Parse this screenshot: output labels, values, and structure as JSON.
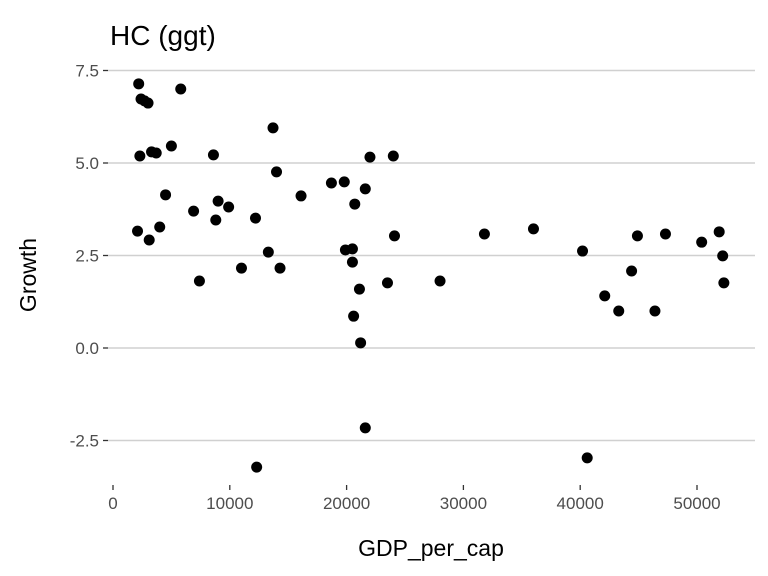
{
  "chart_data": {
    "type": "scatter",
    "title": "HC (ggt)",
    "xlabel": "GDP_per_cap",
    "ylabel": "Growth",
    "xlim": [
      0,
      55000
    ],
    "ylim": [
      -3.5,
      7.8
    ],
    "xticks": [
      0,
      10000,
      20000,
      30000,
      40000,
      50000
    ],
    "xtick_labels": [
      "0",
      "10000",
      "20000",
      "30000",
      "40000",
      "50000"
    ],
    "yticks": [
      -2.5,
      0,
      2.5,
      5,
      7.5
    ],
    "ytick_labels": [
      "-2.5",
      "0.0",
      "2.5",
      "5.0",
      "7.5"
    ],
    "grid": "horizontal-major",
    "point_color": "#000000",
    "grid_color": "#d0d0d0",
    "points": [
      [
        2200,
        7.14
      ],
      [
        2400,
        6.73
      ],
      [
        2700,
        6.68
      ],
      [
        3000,
        6.62
      ],
      [
        5800,
        7.0
      ],
      [
        2300,
        5.19
      ],
      [
        3300,
        5.3
      ],
      [
        3700,
        5.27
      ],
      [
        5000,
        5.46
      ],
      [
        8600,
        5.22
      ],
      [
        13700,
        5.95
      ],
      [
        14000,
        4.76
      ],
      [
        4500,
        4.14
      ],
      [
        16100,
        4.11
      ],
      [
        18700,
        4.46
      ],
      [
        19800,
        4.49
      ],
      [
        22000,
        5.16
      ],
      [
        21600,
        4.3
      ],
      [
        20700,
        3.89
      ],
      [
        24000,
        5.19
      ],
      [
        2100,
        3.16
      ],
      [
        3100,
        2.92
      ],
      [
        4000,
        3.27
      ],
      [
        6900,
        3.7
      ],
      [
        9000,
        3.97
      ],
      [
        8800,
        3.46
      ],
      [
        9900,
        3.81
      ],
      [
        12200,
        3.51
      ],
      [
        13300,
        2.59
      ],
      [
        14300,
        2.16
      ],
      [
        11000,
        2.16
      ],
      [
        7400,
        1.81
      ],
      [
        19900,
        2.65
      ],
      [
        20500,
        2.68
      ],
      [
        20500,
        2.32
      ],
      [
        21100,
        1.59
      ],
      [
        20600,
        0.86
      ],
      [
        21200,
        0.14
      ],
      [
        21600,
        -2.16
      ],
      [
        12300,
        -3.22
      ],
      [
        23500,
        1.76
      ],
      [
        24100,
        3.03
      ],
      [
        28000,
        1.81
      ],
      [
        31800,
        3.08
      ],
      [
        36000,
        3.22
      ],
      [
        40200,
        2.62
      ],
      [
        40600,
        -2.97
      ],
      [
        42100,
        1.41
      ],
      [
        43300,
        1.0
      ],
      [
        44400,
        2.08
      ],
      [
        44900,
        3.03
      ],
      [
        47300,
        3.08
      ],
      [
        46400,
        1.0
      ],
      [
        50400,
        2.86
      ],
      [
        51900,
        3.14
      ],
      [
        52200,
        2.49
      ],
      [
        52300,
        1.76
      ]
    ]
  }
}
